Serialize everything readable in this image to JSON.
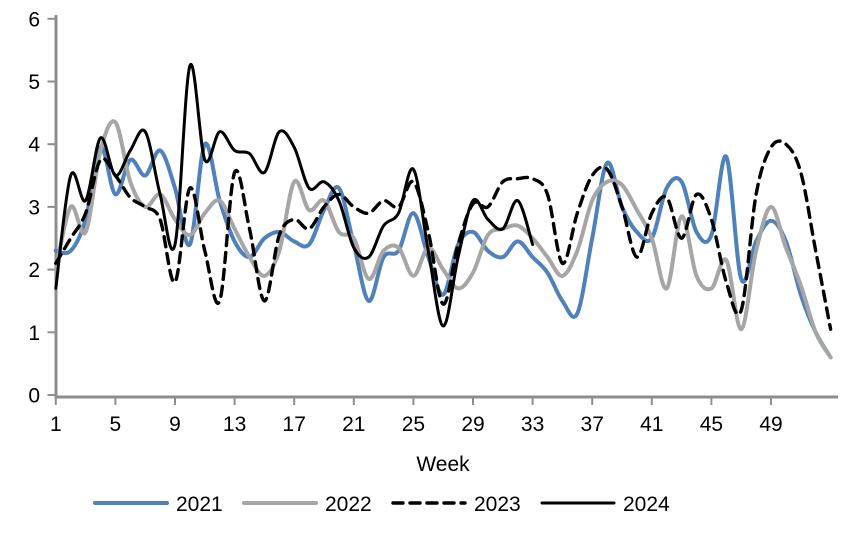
{
  "background_color": "#ffffff",
  "axis_color": "#8e8e8e",
  "text_color": "#000000",
  "chart_data": {
    "type": "line",
    "title": "",
    "xlabel": "Week",
    "ylabel": "",
    "grid": false,
    "legend_position": "bottom",
    "xlim": [
      1,
      53
    ],
    "ylim": [
      0,
      6
    ],
    "x_tick_labels": [
      1,
      5,
      9,
      13,
      17,
      21,
      25,
      29,
      33,
      37,
      41,
      45,
      49
    ],
    "y_tick_labels": [
      0,
      1,
      2,
      3,
      4,
      5,
      6
    ],
    "x_start": 1,
    "x_step": 1,
    "series": [
      {
        "name": "2021",
        "color": "#4F81BD",
        "dash": "solid",
        "width": 4,
        "values": [
          2.3,
          2.3,
          2.8,
          3.95,
          3.2,
          3.75,
          3.5,
          3.9,
          3.3,
          2.4,
          4.0,
          3.1,
          2.45,
          2.2,
          2.5,
          2.6,
          2.45,
          2.4,
          2.95,
          3.3,
          2.4,
          1.5,
          2.2,
          2.3,
          2.9,
          2.2,
          1.6,
          2.4,
          2.6,
          2.3,
          2.2,
          2.45,
          2.2,
          1.95,
          1.5,
          1.3,
          2.5,
          3.7,
          3.0,
          2.6,
          2.5,
          3.3,
          3.4,
          2.6,
          2.55,
          3.8,
          1.85,
          2.45,
          2.78,
          2.45,
          1.6,
          1.0,
          0.6
        ]
      },
      {
        "name": "2022",
        "color": "#A6A6A6",
        "dash": "solid",
        "width": 4,
        "values": [
          2.0,
          3.0,
          2.6,
          3.9,
          4.35,
          3.4,
          3.0,
          3.2,
          2.8,
          2.55,
          2.9,
          3.1,
          2.65,
          2.2,
          1.9,
          2.3,
          3.4,
          2.95,
          3.1,
          2.6,
          2.5,
          1.85,
          2.3,
          2.35,
          1.9,
          2.35,
          2.0,
          1.7,
          1.95,
          2.55,
          2.65,
          2.7,
          2.5,
          2.2,
          1.9,
          2.3,
          3.1,
          3.4,
          3.35,
          2.95,
          2.5,
          1.7,
          2.85,
          1.9,
          1.7,
          2.15,
          1.05,
          2.3,
          3.0,
          2.35,
          1.75,
          1.0,
          0.6
        ]
      },
      {
        "name": "2023",
        "color": "#000000",
        "dash": "dashed",
        "width": 3.4,
        "values": [
          2.1,
          2.5,
          2.9,
          3.75,
          3.5,
          3.15,
          3.0,
          2.8,
          1.8,
          3.3,
          2.3,
          1.5,
          3.55,
          2.65,
          1.5,
          2.55,
          2.8,
          2.65,
          3.0,
          3.2,
          3.0,
          2.9,
          3.1,
          3.0,
          3.4,
          2.6,
          1.45,
          2.4,
          3.05,
          3.0,
          3.4,
          3.45,
          3.45,
          3.2,
          2.1,
          2.9,
          3.5,
          3.6,
          3.0,
          2.2,
          2.9,
          3.15,
          2.5,
          3.2,
          2.8,
          1.8,
          1.35,
          3.2,
          3.95,
          4.0,
          3.55,
          2.3,
          1.05
        ]
      },
      {
        "name": "2024",
        "color": "#000000",
        "dash": "solid",
        "width": 3,
        "values": [
          1.7,
          3.5,
          3.1,
          4.1,
          3.5,
          3.9,
          4.2,
          3.2,
          2.4,
          5.25,
          3.75,
          4.2,
          3.9,
          3.85,
          3.55,
          4.2,
          3.95,
          3.3,
          3.4,
          3.1,
          2.35,
          2.2,
          2.7,
          2.9,
          3.6,
          2.3,
          1.1,
          2.2,
          3.1,
          2.8,
          2.65,
          3.1,
          2.4
        ]
      }
    ]
  }
}
